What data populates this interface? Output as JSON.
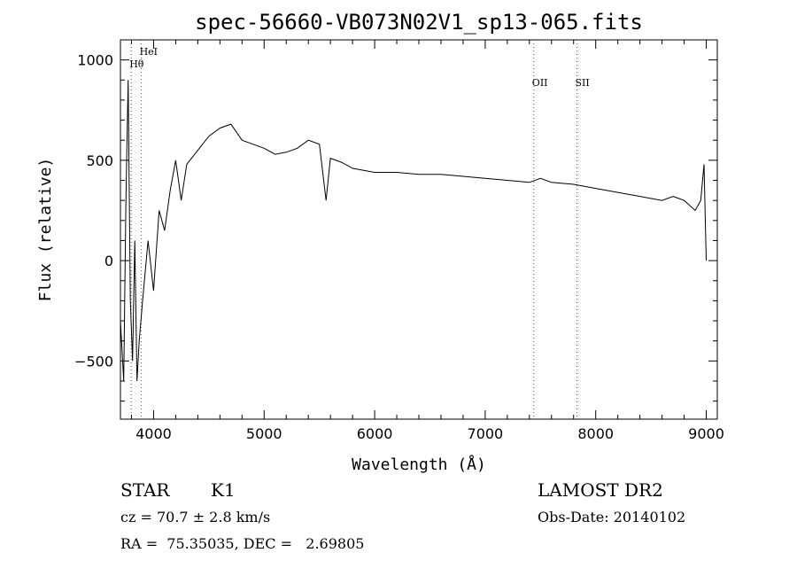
{
  "chart_data": {
    "type": "line",
    "title": "spec-56660-VB073N02V1_sp13-065.fits",
    "xlabel": "Wavelength (Å)",
    "ylabel": "Flux (relative)",
    "xlim": [
      3700,
      9100
    ],
    "ylim": [
      -790,
      1100
    ],
    "xticks": [
      4000,
      5000,
      6000,
      7000,
      8000,
      9000
    ],
    "yticks": [
      -500,
      0,
      500,
      1000
    ],
    "grid": false,
    "line_color": "#000000",
    "series": [
      {
        "x": [
          3700,
          3730,
          3750,
          3770,
          3790,
          3810,
          3830,
          3850,
          3870,
          3900,
          3950,
          4000,
          4050,
          4100,
          4150,
          4200,
          4250,
          4300,
          4400,
          4500,
          4600,
          4700,
          4800,
          4900,
          5000,
          5100,
          5200,
          5300,
          5400,
          5500,
          5560,
          5600,
          5700,
          5800,
          5900,
          6000,
          6200,
          6400,
          6600,
          6800,
          7000,
          7200,
          7400,
          7500,
          7600,
          7800,
          8000,
          8200,
          8400,
          8600,
          8700,
          8800,
          8900,
          8950,
          8980,
          9000
        ],
        "y": [
          -300,
          -600,
          300,
          900,
          -200,
          -500,
          100,
          -600,
          -400,
          -200,
          100,
          -150,
          250,
          150,
          350,
          500,
          300,
          480,
          550,
          620,
          660,
          680,
          600,
          580,
          560,
          530,
          540,
          560,
          600,
          580,
          300,
          510,
          490,
          460,
          450,
          440,
          440,
          430,
          430,
          420,
          410,
          400,
          390,
          410,
          390,
          380,
          360,
          340,
          320,
          300,
          320,
          300,
          250,
          300,
          480,
          0
        ]
      }
    ],
    "emission_lines": [
      {
        "label": "HeI",
        "x": 3889
      },
      {
        "label": "Hθ",
        "x": 3798
      },
      {
        "label": "OII",
        "x": 7440
      },
      {
        "label": "SII",
        "x": 7830
      }
    ]
  },
  "info": {
    "object_class": "STAR",
    "subclass": "K1",
    "survey": "LAMOST DR2",
    "redshift_text": "cz = 70.7 ± 2.8 km/s",
    "obs_date_text": "Obs-Date: 20140102",
    "coords_text": "RA =  75.35035, DEC =   2.69805"
  }
}
